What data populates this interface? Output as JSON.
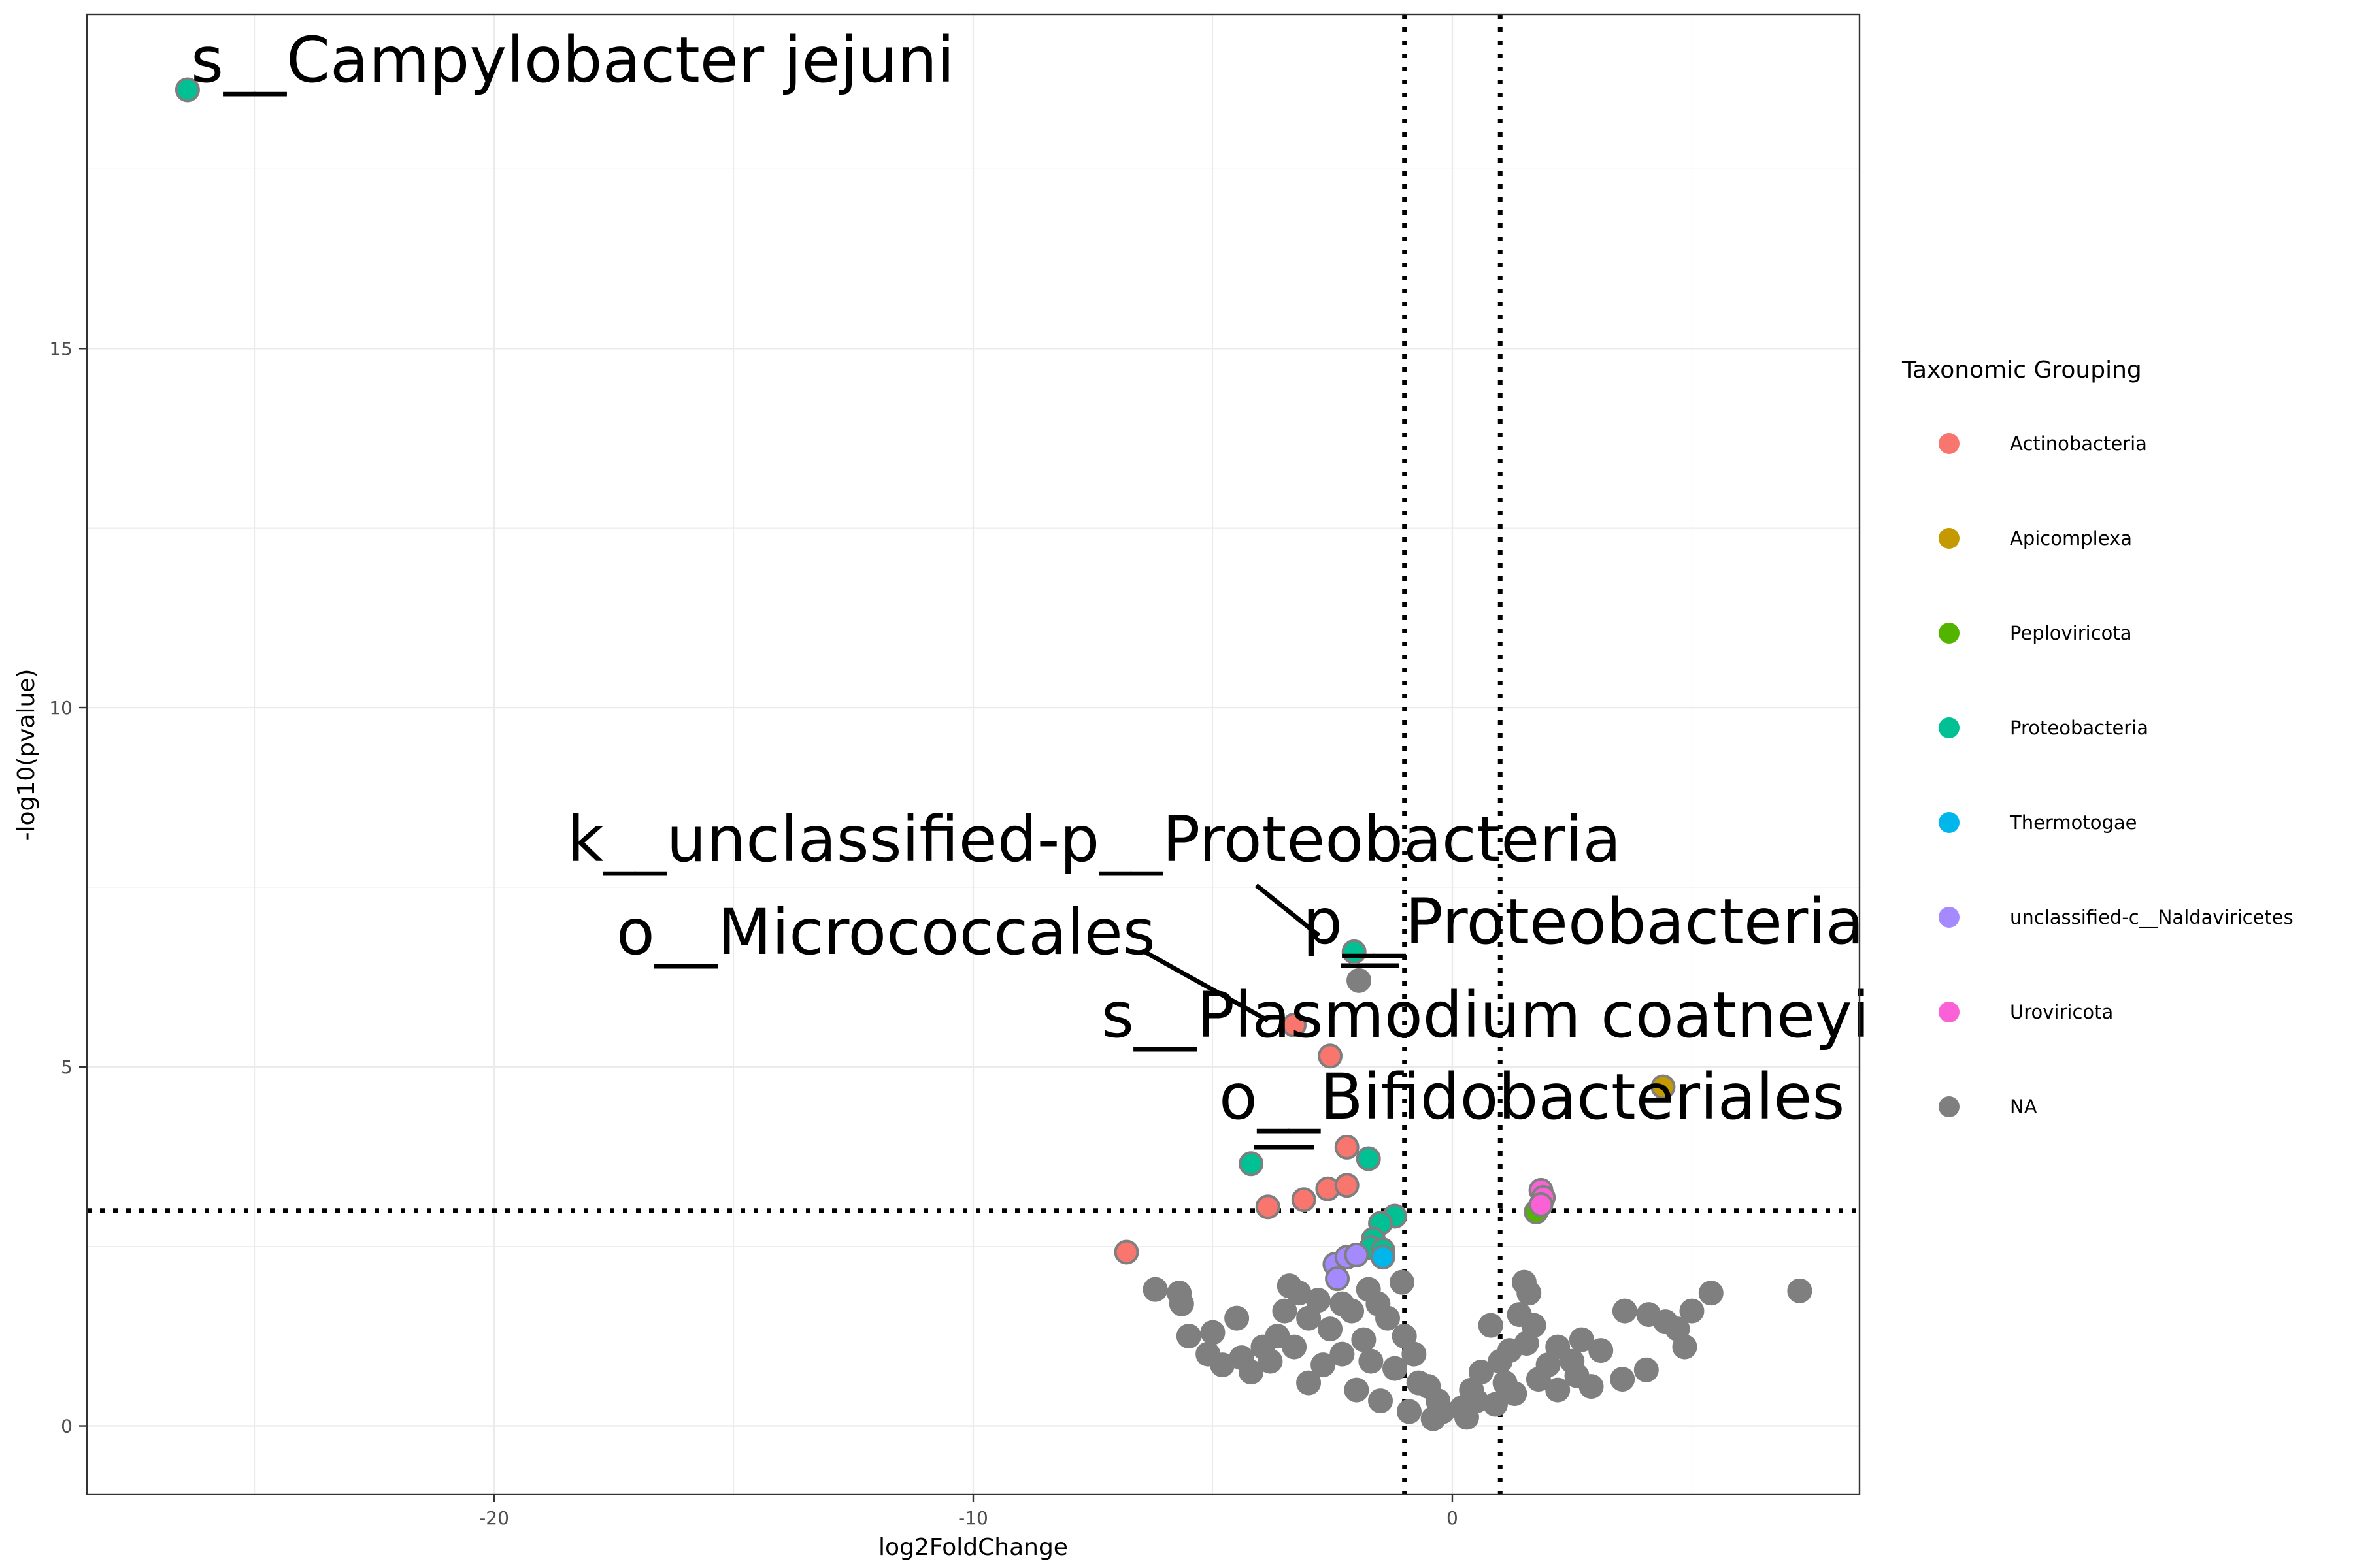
{
  "chart_data": {
    "type": "scatter",
    "xlabel": "log2FoldChange",
    "ylabel": "-log10(pvalue)",
    "xlim": [
      -28.5,
      8.5
    ],
    "ylim": [
      -0.95,
      19.65
    ],
    "x_ticks": [
      -20,
      -10,
      0
    ],
    "y_ticks": [
      0,
      5,
      10,
      15
    ],
    "grid": true,
    "thresholds": {
      "vertical": [
        -1,
        1
      ],
      "horizontal": [
        3
      ]
    },
    "legend": {
      "title": "Taxonomic Grouping",
      "position": "right",
      "entries": [
        {
          "name": "Actinobacteria",
          "color": "#F8766D"
        },
        {
          "name": "Apicomplexa",
          "color": "#C49A00"
        },
        {
          "name": "Peploviricota",
          "color": "#53B400"
        },
        {
          "name": "Proteobacteria",
          "color": "#00C094"
        },
        {
          "name": "Thermotogae",
          "color": "#00B6EB"
        },
        {
          "name": "unclassified-c__Naldaviricetes",
          "color": "#A58AFF"
        },
        {
          "name": "Uroviricota",
          "color": "#FB61D7"
        },
        {
          "name": "NA",
          "color": "#7F7F7F"
        }
      ]
    },
    "series": [
      {
        "name": "Actinobacteria",
        "points": [
          [
            -3.3,
            5.58
          ],
          [
            -2.55,
            5.15
          ],
          [
            -2.2,
            3.88
          ],
          [
            -2.6,
            3.3
          ],
          [
            -2.2,
            3.35
          ],
          [
            -3.1,
            3.15
          ],
          [
            -3.85,
            3.05
          ],
          [
            -6.8,
            2.42
          ]
        ]
      },
      {
        "name": "Apicomplexa",
        "points": [
          [
            4.4,
            4.72
          ]
        ]
      },
      {
        "name": "Peploviricota",
        "points": [
          [
            1.75,
            2.98
          ]
        ]
      },
      {
        "name": "Proteobacteria",
        "points": [
          [
            -26.4,
            18.6
          ],
          [
            -2.05,
            6.6
          ],
          [
            -4.2,
            3.65
          ],
          [
            -1.75,
            3.72
          ],
          [
            -1.2,
            2.92
          ],
          [
            -1.5,
            2.82
          ],
          [
            -1.65,
            2.6
          ],
          [
            -1.7,
            2.48
          ],
          [
            -1.45,
            2.45
          ]
        ]
      },
      {
        "name": "Thermotogae",
        "points": [
          [
            -1.45,
            2.35
          ]
        ]
      },
      {
        "name": "unclassified-c__Naldaviricetes",
        "points": [
          [
            -2.45,
            2.25
          ],
          [
            -2.2,
            2.35
          ],
          [
            -2.0,
            2.38
          ],
          [
            -2.4,
            2.05
          ]
        ]
      },
      {
        "name": "Uroviricota",
        "points": [
          [
            1.85,
            3.28
          ],
          [
            1.9,
            3.18
          ],
          [
            1.85,
            3.08
          ]
        ]
      },
      {
        "name": "NA",
        "points": [
          [
            -1.95,
            6.2
          ],
          [
            7.25,
            1.88
          ],
          [
            5.4,
            1.85
          ],
          [
            5.0,
            1.6
          ],
          [
            4.1,
            1.55
          ],
          [
            3.6,
            1.6
          ],
          [
            4.45,
            1.45
          ],
          [
            4.7,
            1.35
          ],
          [
            4.85,
            1.1
          ],
          [
            4.05,
            0.78
          ],
          [
            3.55,
            0.65
          ],
          [
            3.1,
            1.05
          ],
          [
            2.9,
            0.55
          ],
          [
            2.7,
            1.2
          ],
          [
            2.5,
            0.9
          ],
          [
            2.2,
            1.1
          ],
          [
            2.0,
            0.85
          ],
          [
            1.8,
            0.65
          ],
          [
            1.5,
            2.0
          ],
          [
            1.6,
            1.85
          ],
          [
            1.4,
            1.55
          ],
          [
            1.7,
            1.4
          ],
          [
            1.55,
            1.15
          ],
          [
            1.2,
            1.05
          ],
          [
            1.0,
            0.9
          ],
          [
            0.8,
            1.4
          ],
          [
            0.6,
            0.75
          ],
          [
            0.4,
            0.5
          ],
          [
            0.2,
            0.25
          ],
          [
            -0.2,
            0.2
          ],
          [
            -0.5,
            0.55
          ],
          [
            -0.8,
            1.0
          ],
          [
            -1.0,
            1.25
          ],
          [
            -1.2,
            0.8
          ],
          [
            -1.35,
            1.5
          ],
          [
            -1.05,
            2.0
          ],
          [
            -1.55,
            1.7
          ],
          [
            -1.75,
            1.9
          ],
          [
            -1.85,
            1.2
          ],
          [
            -2.1,
            1.6
          ],
          [
            -2.3,
            1.7
          ],
          [
            -2.55,
            1.35
          ],
          [
            -2.8,
            1.75
          ],
          [
            -3.0,
            1.5
          ],
          [
            -3.2,
            1.85
          ],
          [
            -3.4,
            1.95
          ],
          [
            -3.5,
            1.6
          ],
          [
            -3.65,
            1.25
          ],
          [
            -3.95,
            1.1
          ],
          [
            -4.4,
            0.95
          ],
          [
            -4.5,
            1.5
          ],
          [
            -5.0,
            1.3
          ],
          [
            -5.1,
            1.0
          ],
          [
            -5.5,
            1.25
          ],
          [
            -5.65,
            1.7
          ],
          [
            -5.7,
            1.85
          ],
          [
            -6.2,
            1.9
          ],
          [
            -4.8,
            0.85
          ],
          [
            -4.2,
            0.75
          ],
          [
            -3.0,
            0.6
          ],
          [
            -2.0,
            0.5
          ],
          [
            -1.5,
            0.35
          ],
          [
            -0.9,
            0.2
          ],
          [
            -0.4,
            0.1
          ],
          [
            0.3,
            0.12
          ],
          [
            0.9,
            0.3
          ],
          [
            1.3,
            0.45
          ],
          [
            2.2,
            0.5
          ],
          [
            2.6,
            0.7
          ],
          [
            1.1,
            0.6
          ],
          [
            0.5,
            0.35
          ],
          [
            -0.3,
            0.35
          ],
          [
            -0.7,
            0.6
          ],
          [
            -1.7,
            0.9
          ],
          [
            -2.3,
            1.0
          ],
          [
            -2.7,
            0.85
          ],
          [
            -3.3,
            1.1
          ],
          [
            -3.8,
            0.9
          ]
        ]
      }
    ],
    "annotations": [
      {
        "text": "s__Campylobacter jejuni",
        "x": -26.4,
        "y": 18.6
      },
      {
        "text": "k__unclassified-p__Proteobacteria",
        "x": -2.05,
        "y": 6.6
      },
      {
        "text": "o__Micrococcales",
        "x": -3.3,
        "y": 5.58
      },
      {
        "text": "p__Proteobacteria",
        "x": -1.95,
        "y": 6.2
      },
      {
        "text": "s__Plasmodium coatneyi",
        "x": 4.4,
        "y": 4.72
      },
      {
        "text": "o__Bifidobacteriales",
        "x": -2.2,
        "y": 3.88
      }
    ]
  }
}
